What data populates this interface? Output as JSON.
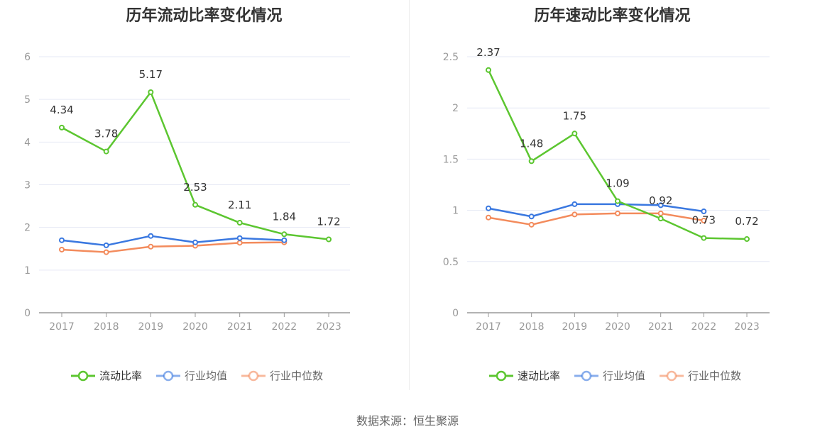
{
  "source_label": "数据来源：恒生聚源",
  "chart_data": [
    {
      "type": "line",
      "title": "历年流动比率变化情况",
      "categories": [
        "2017",
        "2018",
        "2019",
        "2020",
        "2021",
        "2022",
        "2023"
      ],
      "ylim": [
        0,
        6
      ],
      "yticks": [
        0,
        1,
        2,
        3,
        4,
        5,
        6
      ],
      "grid": true,
      "legend_position": "bottom-center",
      "series": [
        {
          "name": "流动比率",
          "color": "#5cc630",
          "values": [
            4.34,
            3.78,
            5.17,
            2.53,
            2.11,
            1.84,
            1.72
          ],
          "labels": [
            "4.34",
            "3.78",
            "5.17",
            "2.53",
            "2.11",
            "1.84",
            "1.72"
          ]
        },
        {
          "name": "行业均值",
          "color": "#3a78e0",
          "values": [
            1.7,
            1.58,
            1.8,
            1.65,
            1.75,
            1.7,
            null
          ]
        },
        {
          "name": "行业中位数",
          "color": "#f38b5c",
          "values": [
            1.48,
            1.42,
            1.55,
            1.57,
            1.64,
            1.65,
            null
          ]
        }
      ]
    },
    {
      "type": "line",
      "title": "历年速动比率变化情况",
      "categories": [
        "2017",
        "2018",
        "2019",
        "2020",
        "2021",
        "2022",
        "2023"
      ],
      "ylim": [
        0,
        2.5
      ],
      "yticks": [
        0,
        0.5,
        1,
        1.5,
        2,
        2.5
      ],
      "grid": true,
      "legend_position": "bottom-center",
      "series": [
        {
          "name": "速动比率",
          "color": "#5cc630",
          "values": [
            2.37,
            1.48,
            1.75,
            1.09,
            0.92,
            0.73,
            0.72
          ],
          "labels": [
            "2.37",
            "1.48",
            "1.75",
            "1.09",
            "0.92",
            "0.73",
            "0.72"
          ]
        },
        {
          "name": "行业均值",
          "color": "#3a78e0",
          "values": [
            1.02,
            0.94,
            1.06,
            1.06,
            1.05,
            0.99,
            null
          ]
        },
        {
          "name": "行业中位数",
          "color": "#f38b5c",
          "values": [
            0.93,
            0.86,
            0.96,
            0.97,
            0.97,
            0.9,
            null
          ]
        }
      ]
    }
  ]
}
